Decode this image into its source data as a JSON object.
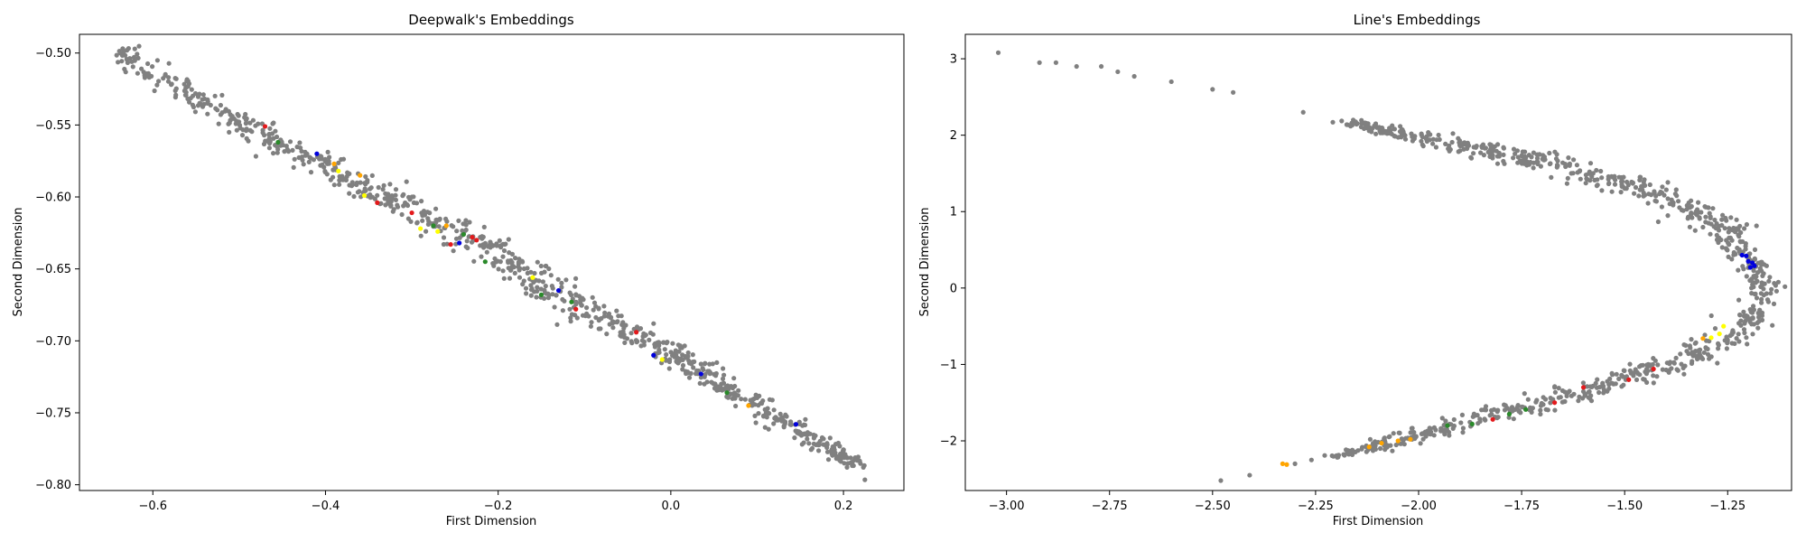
{
  "chart_data": [
    {
      "type": "scatter",
      "title": "Deepwalk's Embeddings",
      "xlabel": "First Dimension",
      "ylabel": "Second Dimension",
      "xlim": [
        -0.685,
        0.27
      ],
      "ylim": [
        -0.804,
        -0.487
      ],
      "xticks": [
        -0.6,
        -0.4,
        -0.2,
        0.0,
        0.2
      ],
      "yticks": [
        -0.8,
        -0.75,
        -0.7,
        -0.65,
        -0.6,
        -0.55,
        -0.5
      ],
      "xtick_labels": [
        "−0.6",
        "−0.4",
        "−0.2",
        "0.0",
        "0.2"
      ],
      "ytick_labels": [
        "−0.80",
        "−0.75",
        "−0.70",
        "−0.65",
        "−0.60",
        "−0.55",
        "−0.50"
      ],
      "grid": false,
      "colors": {
        "gray": "#808080",
        "red": "#e31a1c",
        "green": "#2a8a2a",
        "blue": "#0000dd",
        "yellow": "#ffff00",
        "orange": "#ffa500"
      },
      "band": {
        "gray_count": 900,
        "segments": [
          [
            -0.64,
            -0.5,
            0.006
          ],
          [
            -0.5,
            -0.548,
            0.005
          ],
          [
            -0.3,
            -0.608,
            0.006
          ],
          [
            -0.2,
            -0.639,
            0.007
          ],
          [
            -0.1,
            -0.678,
            0.007
          ],
          [
            0.0,
            -0.708,
            0.006
          ],
          [
            0.1,
            -0.745,
            0.005
          ],
          [
            0.225,
            -0.789,
            0.003
          ]
        ]
      },
      "colored_points": [
        {
          "color": "red",
          "x": -0.47,
          "y": -0.551
        },
        {
          "color": "green",
          "x": -0.455,
          "y": -0.562
        },
        {
          "color": "blue",
          "x": -0.41,
          "y": -0.57
        },
        {
          "color": "orange",
          "x": -0.39,
          "y": -0.577
        },
        {
          "color": "yellow",
          "x": -0.385,
          "y": -0.582
        },
        {
          "color": "orange",
          "x": -0.36,
          "y": -0.585
        },
        {
          "color": "yellow",
          "x": -0.355,
          "y": -0.599
        },
        {
          "color": "red",
          "x": -0.34,
          "y": -0.604
        },
        {
          "color": "red",
          "x": -0.3,
          "y": -0.611
        },
        {
          "color": "yellow",
          "x": -0.29,
          "y": -0.622
        },
        {
          "color": "green",
          "x": -0.275,
          "y": -0.62
        },
        {
          "color": "yellow",
          "x": -0.27,
          "y": -0.624
        },
        {
          "color": "orange",
          "x": -0.26,
          "y": -0.62
        },
        {
          "color": "red",
          "x": -0.255,
          "y": -0.633
        },
        {
          "color": "blue",
          "x": -0.245,
          "y": -0.632
        },
        {
          "color": "green",
          "x": -0.24,
          "y": -0.626
        },
        {
          "color": "red",
          "x": -0.23,
          "y": -0.628
        },
        {
          "color": "red",
          "x": -0.225,
          "y": -0.63
        },
        {
          "color": "green",
          "x": -0.215,
          "y": -0.645
        },
        {
          "color": "yellow",
          "x": -0.16,
          "y": -0.656
        },
        {
          "color": "green",
          "x": -0.15,
          "y": -0.668
        },
        {
          "color": "blue",
          "x": -0.13,
          "y": -0.665
        },
        {
          "color": "green",
          "x": -0.115,
          "y": -0.673
        },
        {
          "color": "red",
          "x": -0.11,
          "y": -0.678
        },
        {
          "color": "red",
          "x": -0.04,
          "y": -0.694
        },
        {
          "color": "blue",
          "x": -0.02,
          "y": -0.71
        },
        {
          "color": "yellow",
          "x": -0.01,
          "y": -0.713
        },
        {
          "color": "blue",
          "x": 0.035,
          "y": -0.723
        },
        {
          "color": "green",
          "x": 0.065,
          "y": -0.736
        },
        {
          "color": "orange",
          "x": 0.09,
          "y": -0.745
        },
        {
          "color": "blue",
          "x": 0.145,
          "y": -0.758
        }
      ]
    },
    {
      "type": "scatter",
      "title": "Line's Embeddings",
      "xlabel": "First Dimension",
      "ylabel": "Second Dimension",
      "xlim": [
        -3.1,
        -1.095
      ],
      "ylim": [
        -2.65,
        3.32
      ],
      "xticks": [
        -3.0,
        -2.75,
        -2.5,
        -2.25,
        -2.0,
        -1.75,
        -1.5,
        -1.25
      ],
      "yticks": [
        -2,
        -1,
        0,
        1,
        2,
        3
      ],
      "xtick_labels": [
        "−3.00",
        "−2.75",
        "−2.50",
        "−2.25",
        "−2.00",
        "−1.75",
        "−1.50",
        "−1.25"
      ],
      "ytick_labels": [
        "−2",
        "−1",
        "0",
        "1",
        "2",
        "3"
      ],
      "grid": false,
      "colors": {
        "gray": "#808080",
        "red": "#e31a1c",
        "green": "#2a8a2a",
        "blue": "#0000dd",
        "yellow": "#ffff00",
        "orange": "#ffa500"
      },
      "outlier_points": [
        [
          -3.02,
          3.08
        ],
        [
          -2.92,
          2.95
        ],
        [
          -2.88,
          2.95
        ],
        [
          -2.83,
          2.9
        ],
        [
          -2.77,
          2.9
        ],
        [
          -2.73,
          2.83
        ],
        [
          -2.69,
          2.77
        ],
        [
          -2.6,
          2.7
        ],
        [
          -2.5,
          2.6
        ],
        [
          -2.45,
          2.56
        ],
        [
          -2.28,
          2.3
        ],
        [
          -2.48,
          -2.52
        ],
        [
          -2.41,
          -2.45
        ],
        [
          -2.3,
          -2.3
        ],
        [
          -2.26,
          -2.25
        ]
      ],
      "band": {
        "gray_count": 900,
        "segments": [
          [
            -2.18,
            2.18,
            0.02,
            0.02
          ],
          [
            -1.96,
            1.94,
            0.03,
            0.04
          ],
          [
            -1.66,
            1.6,
            0.03,
            0.06
          ],
          [
            -1.42,
            1.25,
            0.03,
            0.07
          ],
          [
            -1.27,
            0.8,
            0.03,
            0.08
          ],
          [
            -1.19,
            0.35,
            0.02,
            0.08
          ],
          [
            -1.16,
            0.0,
            0.02,
            0.09
          ],
          [
            -1.2,
            -0.45,
            0.03,
            0.08
          ],
          [
            -1.3,
            -0.8,
            0.03,
            0.08
          ],
          [
            -1.45,
            -1.1,
            0.03,
            0.07
          ],
          [
            -1.7,
            -1.5,
            0.03,
            0.06
          ],
          [
            -1.95,
            -1.85,
            0.03,
            0.05
          ],
          [
            -2.2,
            -2.2,
            0.02,
            0.02
          ]
        ]
      },
      "colored_points": [
        {
          "color": "blue",
          "x": -1.215,
          "y": 0.43
        },
        {
          "color": "blue",
          "x": -1.205,
          "y": 0.42
        },
        {
          "color": "blue",
          "x": -1.2,
          "y": 0.35
        },
        {
          "color": "blue",
          "x": -1.19,
          "y": 0.33
        },
        {
          "color": "blue",
          "x": -1.185,
          "y": 0.29
        },
        {
          "color": "blue",
          "x": -1.195,
          "y": 0.27
        },
        {
          "color": "yellow",
          "x": -1.26,
          "y": -0.5
        },
        {
          "color": "yellow",
          "x": -1.27,
          "y": -0.6
        },
        {
          "color": "yellow",
          "x": -1.29,
          "y": -0.65
        },
        {
          "color": "orange",
          "x": -1.31,
          "y": -0.66
        },
        {
          "color": "red",
          "x": -1.43,
          "y": -1.06
        },
        {
          "color": "red",
          "x": -1.49,
          "y": -1.2
        },
        {
          "color": "red",
          "x": -1.6,
          "y": -1.3
        },
        {
          "color": "red",
          "x": -1.67,
          "y": -1.5
        },
        {
          "color": "green",
          "x": -1.74,
          "y": -1.59
        },
        {
          "color": "green",
          "x": -1.78,
          "y": -1.65
        },
        {
          "color": "red",
          "x": -1.82,
          "y": -1.72
        },
        {
          "color": "green",
          "x": -1.87,
          "y": -1.78
        },
        {
          "color": "green",
          "x": -1.93,
          "y": -1.8
        },
        {
          "color": "orange",
          "x": -2.02,
          "y": -1.98
        },
        {
          "color": "orange",
          "x": -2.05,
          "y": -2.0
        },
        {
          "color": "orange",
          "x": -2.09,
          "y": -2.03
        },
        {
          "color": "orange",
          "x": -2.12,
          "y": -2.08
        },
        {
          "color": "orange",
          "x": -2.33,
          "y": -2.3
        },
        {
          "color": "orange",
          "x": -2.32,
          "y": -2.31
        }
      ]
    }
  ]
}
